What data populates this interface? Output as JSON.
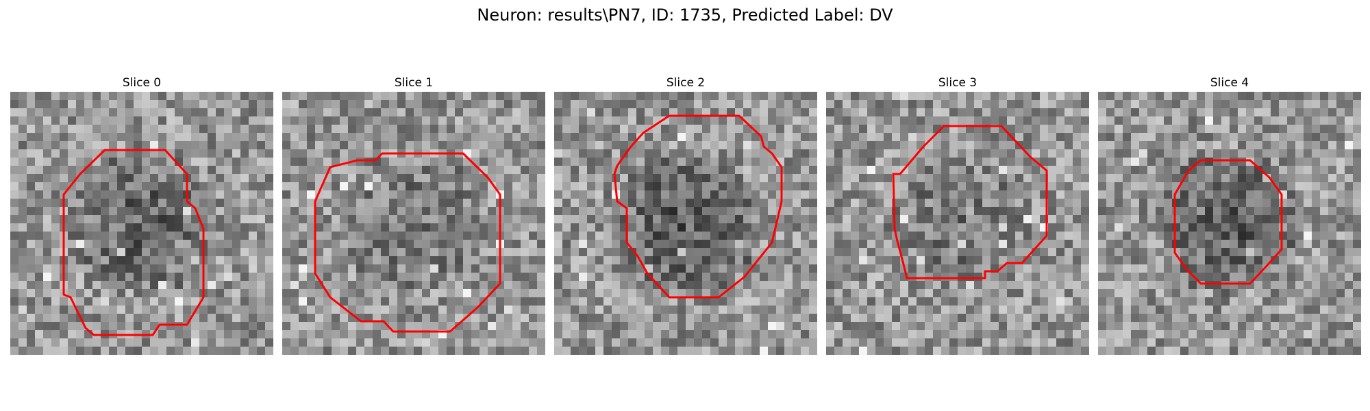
{
  "figure": {
    "title": "Neuron: results\\PN7, ID: 1735, Predicted Label: DV"
  },
  "panels": [
    {
      "title": "Slice 0",
      "seed": 11,
      "darkCenter": 0.55,
      "brightSpots": 0.6,
      "outline_color": "#ff0000"
    },
    {
      "title": "Slice 1",
      "seed": 23,
      "darkCenter": 0.35,
      "brightSpots": 0.5,
      "outline_color": "#ff0000"
    },
    {
      "title": "Slice 2",
      "seed": 37,
      "darkCenter": 0.65,
      "brightSpots": 0.45,
      "outline_color": "#ff0000"
    },
    {
      "title": "Slice 3",
      "seed": 41,
      "darkCenter": 0.35,
      "brightSpots": 0.55,
      "outline_color": "#ff0000"
    },
    {
      "title": "Slice 4",
      "seed": 53,
      "darkCenter": 0.6,
      "brightSpots": 0.7,
      "outline_color": "#ff0000"
    }
  ]
}
